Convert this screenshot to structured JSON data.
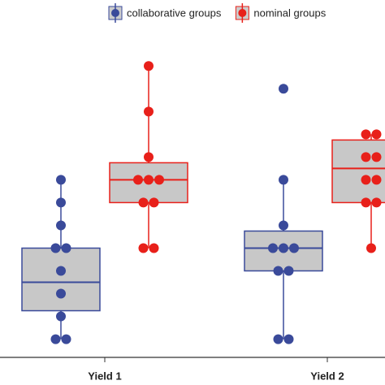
{
  "chart_data": {
    "type": "box",
    "categories": [
      "Yield 1",
      "Yield 2"
    ],
    "ylim": [
      0.2,
      15.9
    ],
    "series": [
      {
        "name": "collaborative groups",
        "color": "#3a4a9a",
        "boxes": [
          {
            "min": 1,
            "q1": 2.25,
            "median": 3.5,
            "q3": 5,
            "max": 8,
            "points": [
              8,
              7,
              6,
              5,
              5,
              4,
              3,
              2,
              1,
              1
            ]
          },
          {
            "min": 1,
            "q1": 4,
            "median": 5,
            "q3": 5.75,
            "max": 8,
            "points": [
              12,
              8,
              6,
              5,
              5,
              5,
              4,
              4,
              1,
              1
            ]
          }
        ]
      },
      {
        "name": "nominal groups",
        "color": "#e8201a",
        "boxes": [
          {
            "min": 5,
            "q1": 7,
            "median": 8,
            "q3": 8.75,
            "max": 13,
            "points": [
              13,
              11,
              9,
              8,
              8,
              8,
              7,
              7,
              5,
              5
            ]
          },
          {
            "min": 5,
            "q1": 7,
            "median": 8.5,
            "q3": 9.75,
            "max": 10,
            "points": [
              10,
              10,
              9,
              9,
              8,
              8,
              7,
              7,
              5
            ]
          }
        ]
      }
    ]
  }
}
